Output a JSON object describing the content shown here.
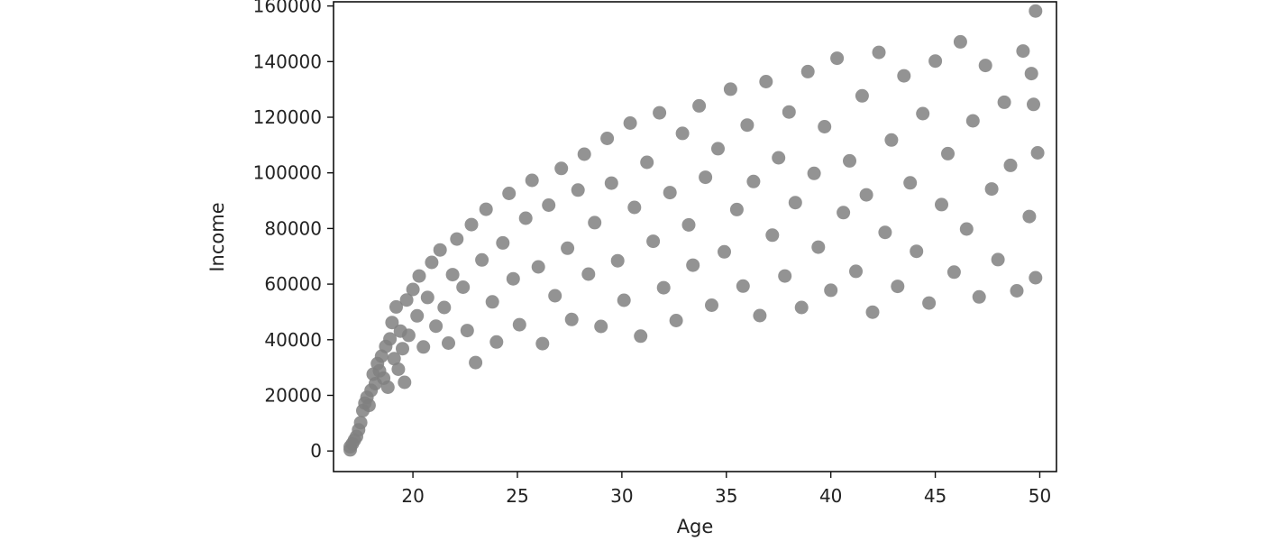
{
  "chart_data": {
    "type": "scatter",
    "title": "",
    "xlabel": "Age",
    "ylabel": "Income",
    "xlim": [
      16.2,
      50.8
    ],
    "ylim": [
      -7400,
      161500
    ],
    "x_ticks": [
      20,
      25,
      30,
      35,
      40,
      45,
      50
    ],
    "y_ticks": [
      0,
      20000,
      40000,
      60000,
      80000,
      100000,
      120000,
      140000,
      160000
    ],
    "grid": false,
    "legend": "none",
    "marker_color": "#808080",
    "marker_opacity": 0.85,
    "points": [
      [
        17.0,
        400
      ],
      [
        17.0,
        1500
      ],
      [
        17.1,
        2600
      ],
      [
        17.2,
        3900
      ],
      [
        17.3,
        5200
      ],
      [
        17.4,
        7600
      ],
      [
        17.5,
        10200
      ],
      [
        17.6,
        14500
      ],
      [
        17.7,
        17200
      ],
      [
        17.8,
        19300
      ],
      [
        17.9,
        16400
      ],
      [
        18.0,
        21800
      ],
      [
        18.1,
        27600
      ],
      [
        18.2,
        24200
      ],
      [
        18.3,
        31400
      ],
      [
        18.4,
        28800
      ],
      [
        18.5,
        34100
      ],
      [
        18.6,
        26200
      ],
      [
        18.7,
        37600
      ],
      [
        18.8,
        22900
      ],
      [
        18.9,
        40300
      ],
      [
        19.0,
        46200
      ],
      [
        19.1,
        33200
      ],
      [
        19.2,
        51800
      ],
      [
        19.3,
        29400
      ],
      [
        19.4,
        43100
      ],
      [
        19.5,
        36800
      ],
      [
        19.6,
        24700
      ],
      [
        19.7,
        54300
      ],
      [
        19.8,
        41600
      ],
      [
        20.0,
        58100
      ],
      [
        20.2,
        48600
      ],
      [
        20.3,
        62900
      ],
      [
        20.5,
        37400
      ],
      [
        20.7,
        55200
      ],
      [
        20.9,
        67800
      ],
      [
        21.1,
        44900
      ],
      [
        21.3,
        72300
      ],
      [
        21.5,
        51600
      ],
      [
        21.7,
        38800
      ],
      [
        21.9,
        63400
      ],
      [
        22.1,
        76200
      ],
      [
        22.4,
        58900
      ],
      [
        22.6,
        43300
      ],
      [
        22.8,
        81400
      ],
      [
        23.0,
        31800
      ],
      [
        23.3,
        68700
      ],
      [
        23.5,
        86900
      ],
      [
        23.8,
        53600
      ],
      [
        24.0,
        39200
      ],
      [
        24.3,
        74800
      ],
      [
        24.6,
        92600
      ],
      [
        24.8,
        61900
      ],
      [
        25.1,
        45400
      ],
      [
        25.4,
        83700
      ],
      [
        25.7,
        97300
      ],
      [
        26.0,
        66200
      ],
      [
        26.2,
        38600
      ],
      [
        26.5,
        88400
      ],
      [
        26.8,
        55800
      ],
      [
        27.1,
        101600
      ],
      [
        27.4,
        72900
      ],
      [
        27.6,
        47300
      ],
      [
        27.9,
        93800
      ],
      [
        28.2,
        106700
      ],
      [
        28.4,
        63600
      ],
      [
        28.7,
        82100
      ],
      [
        29.0,
        44800
      ],
      [
        29.3,
        112400
      ],
      [
        29.5,
        96300
      ],
      [
        29.8,
        68400
      ],
      [
        30.1,
        54200
      ],
      [
        30.4,
        117900
      ],
      [
        30.6,
        87600
      ],
      [
        30.9,
        41300
      ],
      [
        31.2,
        103800
      ],
      [
        31.5,
        75400
      ],
      [
        31.8,
        121600
      ],
      [
        32.0,
        58700
      ],
      [
        32.3,
        92900
      ],
      [
        32.6,
        46900
      ],
      [
        32.9,
        114200
      ],
      [
        33.2,
        81300
      ],
      [
        33.4,
        66800
      ],
      [
        33.7,
        124100
      ],
      [
        34.0,
        98400
      ],
      [
        34.3,
        52400
      ],
      [
        34.6,
        108700
      ],
      [
        34.9,
        71600
      ],
      [
        35.2,
        130100
      ],
      [
        35.5,
        86800
      ],
      [
        35.8,
        59300
      ],
      [
        36.0,
        117200
      ],
      [
        36.3,
        96900
      ],
      [
        36.6,
        48700
      ],
      [
        36.9,
        132800
      ],
      [
        37.2,
        77600
      ],
      [
        37.5,
        105400
      ],
      [
        37.8,
        62900
      ],
      [
        38.0,
        121900
      ],
      [
        38.3,
        89300
      ],
      [
        38.6,
        51600
      ],
      [
        38.9,
        136400
      ],
      [
        39.2,
        99800
      ],
      [
        39.4,
        73300
      ],
      [
        39.7,
        116600
      ],
      [
        40.0,
        57800
      ],
      [
        40.3,
        141200
      ],
      [
        40.6,
        85700
      ],
      [
        40.9,
        104300
      ],
      [
        41.2,
        64600
      ],
      [
        41.5,
        127700
      ],
      [
        41.7,
        92100
      ],
      [
        42.0,
        49900
      ],
      [
        42.3,
        143300
      ],
      [
        42.6,
        78600
      ],
      [
        42.9,
        111800
      ],
      [
        43.2,
        59200
      ],
      [
        43.5,
        134900
      ],
      [
        43.8,
        96400
      ],
      [
        44.1,
        71800
      ],
      [
        44.4,
        121300
      ],
      [
        44.7,
        53200
      ],
      [
        45.0,
        140200
      ],
      [
        45.3,
        88600
      ],
      [
        45.6,
        106900
      ],
      [
        45.9,
        64300
      ],
      [
        46.2,
        147100
      ],
      [
        46.5,
        79800
      ],
      [
        46.8,
        118700
      ],
      [
        47.1,
        55400
      ],
      [
        47.4,
        138600
      ],
      [
        47.7,
        94200
      ],
      [
        48.0,
        68800
      ],
      [
        48.3,
        125400
      ],
      [
        48.6,
        102700
      ],
      [
        48.9,
        57600
      ],
      [
        49.2,
        143800
      ],
      [
        49.5,
        84300
      ],
      [
        49.8,
        158200
      ],
      [
        49.7,
        124600
      ],
      [
        49.9,
        107200
      ],
      [
        49.8,
        62300
      ],
      [
        49.6,
        135700
      ]
    ]
  }
}
